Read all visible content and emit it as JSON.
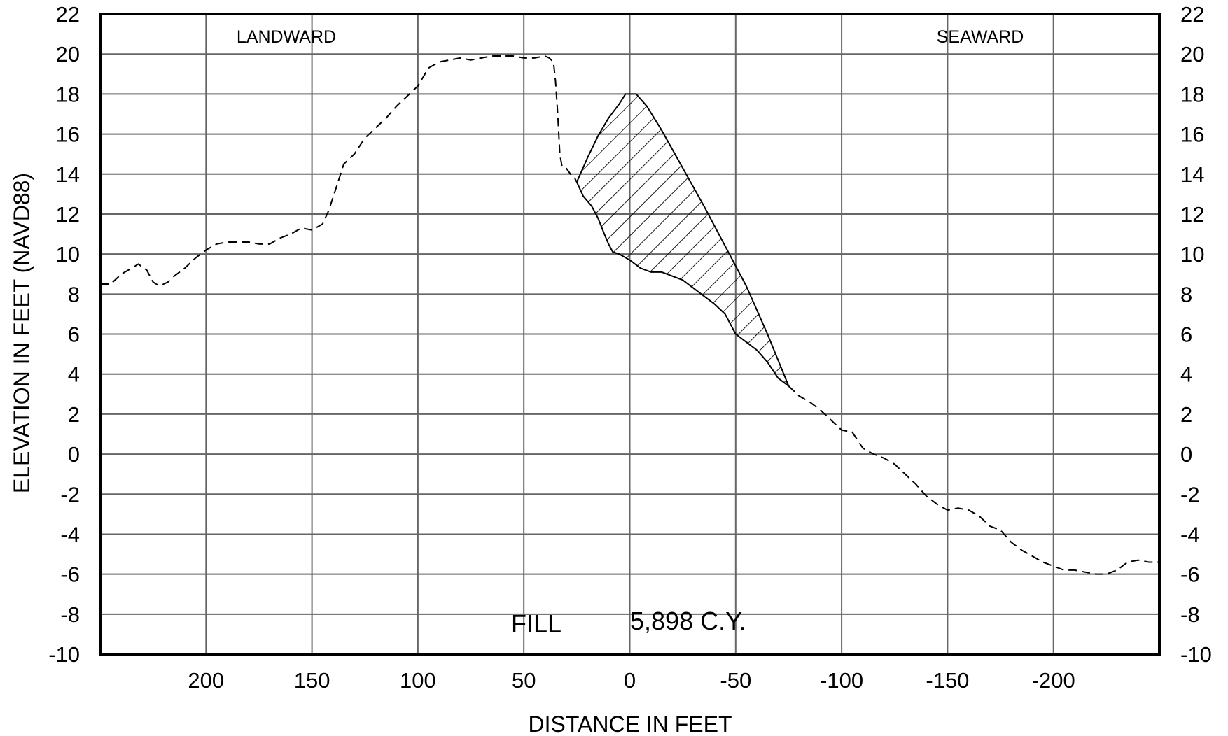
{
  "chart_data": {
    "type": "line",
    "xlabel": "DISTANCE IN FEET",
    "ylabel": "ELEVATION IN FEET (NAVD88)",
    "xlim": [
      250,
      -250
    ],
    "ylim": [
      -10,
      22
    ],
    "x_ticks": [
      200,
      150,
      100,
      50,
      0,
      -50,
      -100,
      -150,
      -200
    ],
    "x_tick_labels": [
      "200",
      "150",
      "100",
      "50",
      "0",
      "-50",
      "-100",
      "-150",
      "-200"
    ],
    "y_ticks": [
      -10,
      -8,
      -6,
      -4,
      -2,
      0,
      2,
      4,
      6,
      8,
      10,
      12,
      14,
      16,
      18,
      20,
      22
    ],
    "y_tick_labels": [
      "-10",
      "-8",
      "-6",
      "-4",
      "-2",
      "0",
      "2",
      "4",
      "6",
      "8",
      "10",
      "12",
      "14",
      "16",
      "18",
      "20",
      "22"
    ],
    "grid": true,
    "annotations": {
      "landward": "LANDWARD",
      "seaward": "SEAWARD",
      "fill_label": "FILL",
      "fill_value": "5,898 C.Y."
    },
    "series": [
      {
        "style": "dashed",
        "x": [
          250,
          245,
          240,
          235,
          232,
          228,
          225,
          222,
          218,
          215,
          210,
          205,
          200,
          195,
          190,
          185,
          180,
          175,
          170,
          165,
          160,
          155,
          150,
          145,
          142,
          138,
          135,
          130,
          125,
          120,
          115,
          110,
          105,
          100,
          95,
          90,
          85,
          80,
          75,
          70,
          65,
          60,
          55,
          50,
          45,
          40,
          38,
          36,
          35,
          34,
          33,
          32,
          30,
          28,
          26,
          25
        ],
        "y": [
          8.5,
          8.5,
          9.0,
          9.3,
          9.5,
          9.2,
          8.6,
          8.4,
          8.6,
          8.9,
          9.3,
          9.8,
          10.2,
          10.5,
          10.6,
          10.6,
          10.6,
          10.5,
          10.5,
          10.8,
          11.0,
          11.3,
          11.2,
          11.5,
          12.2,
          13.5,
          14.5,
          15.0,
          15.8,
          16.3,
          16.8,
          17.4,
          17.9,
          18.4,
          19.3,
          19.6,
          19.7,
          19.8,
          19.7,
          19.8,
          19.9,
          19.9,
          19.9,
          19.8,
          19.8,
          19.9,
          19.8,
          19.6,
          18.6,
          17.0,
          15.0,
          14.4,
          14.3,
          14.0,
          13.8,
          13.6
        ]
      },
      {
        "style": "solid",
        "x": [
          25,
          22,
          18,
          15,
          12,
          10,
          8,
          5,
          0,
          -5,
          -10,
          -15,
          -20,
          -25,
          -30,
          -35,
          -40,
          -45,
          -50,
          -55,
          -60,
          -65,
          -70,
          -75
        ],
        "y": [
          13.6,
          12.9,
          12.4,
          11.8,
          11.0,
          10.5,
          10.1,
          10.0,
          9.7,
          9.3,
          9.1,
          9.1,
          8.9,
          8.7,
          8.3,
          7.9,
          7.5,
          7.0,
          6.0,
          5.6,
          5.2,
          4.6,
          3.8,
          3.4
        ]
      },
      {
        "style": "dashed",
        "x": [
          -75,
          -80,
          -85,
          -90,
          -95,
          -100,
          -105,
          -110,
          -115,
          -120,
          -125,
          -130,
          -135,
          -140,
          -145,
          -150,
          -155,
          -160,
          -165,
          -170,
          -175,
          -180,
          -185,
          -190,
          -195,
          -200,
          -205,
          -210,
          -215,
          -220,
          -225,
          -230,
          -235,
          -240,
          -245,
          -250
        ],
        "y": [
          3.4,
          2.9,
          2.6,
          2.2,
          1.7,
          1.2,
          1.1,
          0.3,
          0.0,
          -0.2,
          -0.5,
          -1.0,
          -1.5,
          -2.1,
          -2.5,
          -2.8,
          -2.7,
          -2.8,
          -3.1,
          -3.6,
          -3.8,
          -4.4,
          -4.8,
          -5.1,
          -5.4,
          -5.6,
          -5.8,
          -5.8,
          -5.9,
          -6.0,
          -6.0,
          -5.8,
          -5.4,
          -5.3,
          -5.4,
          -5.4
        ]
      },
      {
        "style": "solid",
        "x": [
          25,
          20,
          15,
          10,
          5,
          2,
          0,
          -3,
          -8,
          -15,
          -25,
          -35,
          -45,
          -55,
          -65,
          -75
        ],
        "y": [
          13.6,
          14.8,
          15.9,
          16.8,
          17.5,
          18.0,
          18.0,
          18.0,
          17.4,
          16.2,
          14.3,
          12.4,
          10.4,
          8.4,
          6.0,
          3.4
        ]
      }
    ]
  }
}
